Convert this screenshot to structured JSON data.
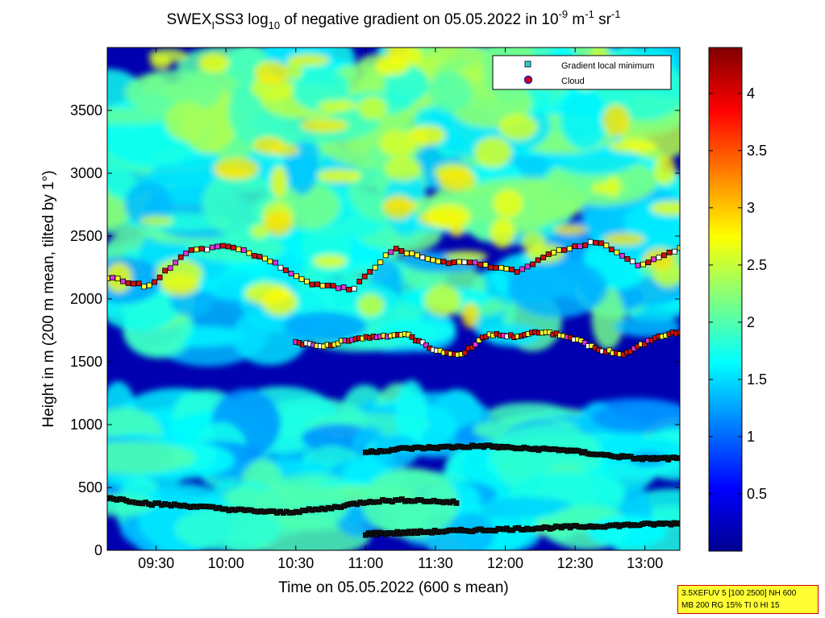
{
  "title": {
    "prefix": "SWEX",
    "sub1": "I",
    "mid": "SS3 log",
    "sub2": "10",
    "rest": " of negative gradient on 05.05.2022 in 10",
    "sup1": "-9",
    "unit1": " m",
    "sup2": "-1",
    "unit2": " sr",
    "sup3": "-1"
  },
  "info_box": {
    "line1": "3.5XEFUV 5 [100 2500] NH 600",
    "line2": "MB 200 RG 15% TI 0 HI 15"
  },
  "chart_data": {
    "type": "heatmap",
    "xlabel": "Time on 05.05.2022 (600 s mean)",
    "ylabel": "Height in m (200 m mean, tilted by 1°)",
    "xlim_hours": [
      9.15,
      13.25
    ],
    "ylim": [
      0,
      4000
    ],
    "x_ticks": [
      "09:30",
      "10:00",
      "10:30",
      "11:00",
      "11:30",
      "12:00",
      "12:30",
      "13:00"
    ],
    "x_tick_hours": [
      9.5,
      10.0,
      10.5,
      11.0,
      11.5,
      12.0,
      12.5,
      13.0
    ],
    "y_ticks": [
      0,
      500,
      1000,
      1500,
      2000,
      2500,
      3000,
      3500
    ],
    "colorbar": {
      "range": [
        0,
        4.4
      ],
      "ticks": [
        0.5,
        1,
        1.5,
        2,
        2.5,
        3,
        3.5,
        4
      ],
      "colormap": "jet"
    },
    "legend": {
      "placement": "top-right",
      "entries": [
        {
          "label": "Gradient local minimum",
          "marker": "square",
          "color": "#33cccc"
        },
        {
          "label": "Cloud",
          "marker": "circle",
          "color": "#cc0000"
        }
      ]
    },
    "layers": [
      {
        "name": "layer-near-surface",
        "start_hour": 11.0,
        "end_hour": 13.25,
        "height_start": 130,
        "height_end": 215,
        "value": 2.5
      },
      {
        "name": "layer-low",
        "start_hour": 9.15,
        "end_hour": 11.65,
        "heights": [
          420,
          370,
          350,
          320,
          300,
          330,
          390,
          400,
          380
        ],
        "value": 2.2
      },
      {
        "name": "layer-mid",
        "start_hour": 11.0,
        "end_hour": 13.25,
        "heights": [
          780,
          810,
          820,
          830,
          810,
          800,
          760,
          730,
          730
        ],
        "value": 2.4
      },
      {
        "name": "layer-cloud-lower",
        "start_hour": 10.5,
        "end_hour": 13.25,
        "heights": [
          1650,
          1620,
          1680,
          1700,
          1720,
          1600,
          1550,
          1720,
          1700,
          1740,
          1700,
          1600,
          1560,
          1680,
          1740
        ],
        "value": 3.6
      },
      {
        "name": "layer-cloud-upper",
        "start_hour": 9.15,
        "end_hour": 13.25,
        "heights": [
          2170,
          2100,
          2380,
          2420,
          2300,
          2120,
          2080,
          2400,
          2300,
          2280,
          2220,
          2380,
          2460,
          2270,
          2400
        ],
        "value": 3.3
      }
    ]
  }
}
